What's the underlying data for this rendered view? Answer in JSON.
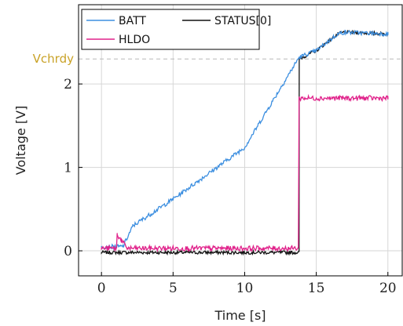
{
  "chart_data": {
    "type": "line",
    "title": "",
    "xlabel": "Time [s]",
    "ylabel": "Voltage [V]",
    "xlim": [
      -1.6,
      21.0
    ],
    "ylim": [
      -0.3,
      2.95
    ],
    "x_ticks": [
      0,
      5,
      10,
      15,
      20
    ],
    "y_ticks": [
      0,
      1,
      2
    ],
    "grid": true,
    "legend": {
      "placement": "top-left",
      "entries": [
        "BATT",
        "STATUS[0]",
        "HLDO"
      ]
    },
    "reference_line": {
      "label": "Vchrdy",
      "y": 2.3,
      "color": "#c9a227",
      "style": "dashed"
    },
    "series": [
      {
        "name": "BATT",
        "color": "#3d8fe0",
        "noise": 0.025,
        "points": [
          [
            0,
            0.05
          ],
          [
            1.5,
            0.05
          ],
          [
            2.2,
            0.3
          ],
          [
            5,
            0.62
          ],
          [
            10,
            1.24
          ],
          [
            13.8,
            2.32
          ],
          [
            15,
            2.4
          ],
          [
            16.5,
            2.6
          ],
          [
            17,
            2.62
          ],
          [
            20,
            2.6
          ]
        ]
      },
      {
        "name": "STATUS[0]",
        "color": "#111111",
        "noise": 0.02,
        "points": [
          [
            0,
            -0.02
          ],
          [
            13.8,
            -0.02
          ],
          [
            13.81,
            2.3
          ],
          [
            15,
            2.4
          ],
          [
            16.5,
            2.6
          ],
          [
            17,
            2.62
          ],
          [
            20,
            2.6
          ]
        ]
      },
      {
        "name": "HLDO",
        "color": "#e0218a",
        "noise": 0.03,
        "points": [
          [
            0,
            0.03
          ],
          [
            1.05,
            0.03
          ],
          [
            1.1,
            0.2
          ],
          [
            1.4,
            0.12
          ],
          [
            1.8,
            0.03
          ],
          [
            13.75,
            0.03
          ],
          [
            13.8,
            1.83
          ],
          [
            20,
            1.83
          ]
        ]
      }
    ]
  }
}
